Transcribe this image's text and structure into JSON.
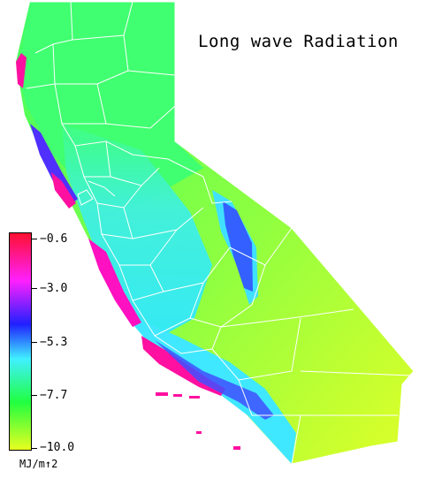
{
  "title": "Long wave Radiation",
  "legend": {
    "ticks": [
      "−0.6",
      "−3.0",
      "−5.3",
      "−7.7",
      "−10.0"
    ],
    "units": "MJ/m↑2",
    "colors": [
      "#ff1030",
      "#ff20ff",
      "#2020ff",
      "#40f0ff",
      "#20ff40",
      "#e8ff20"
    ]
  },
  "map_colors": {
    "ocean": "#ffffff",
    "boundary": "#ffffff",
    "coast_high": "#ff1080",
    "coast_mid": "#3040ff",
    "inland": "#40ff60",
    "valley": "#40e8f0",
    "desert": "#c8ff30"
  }
}
